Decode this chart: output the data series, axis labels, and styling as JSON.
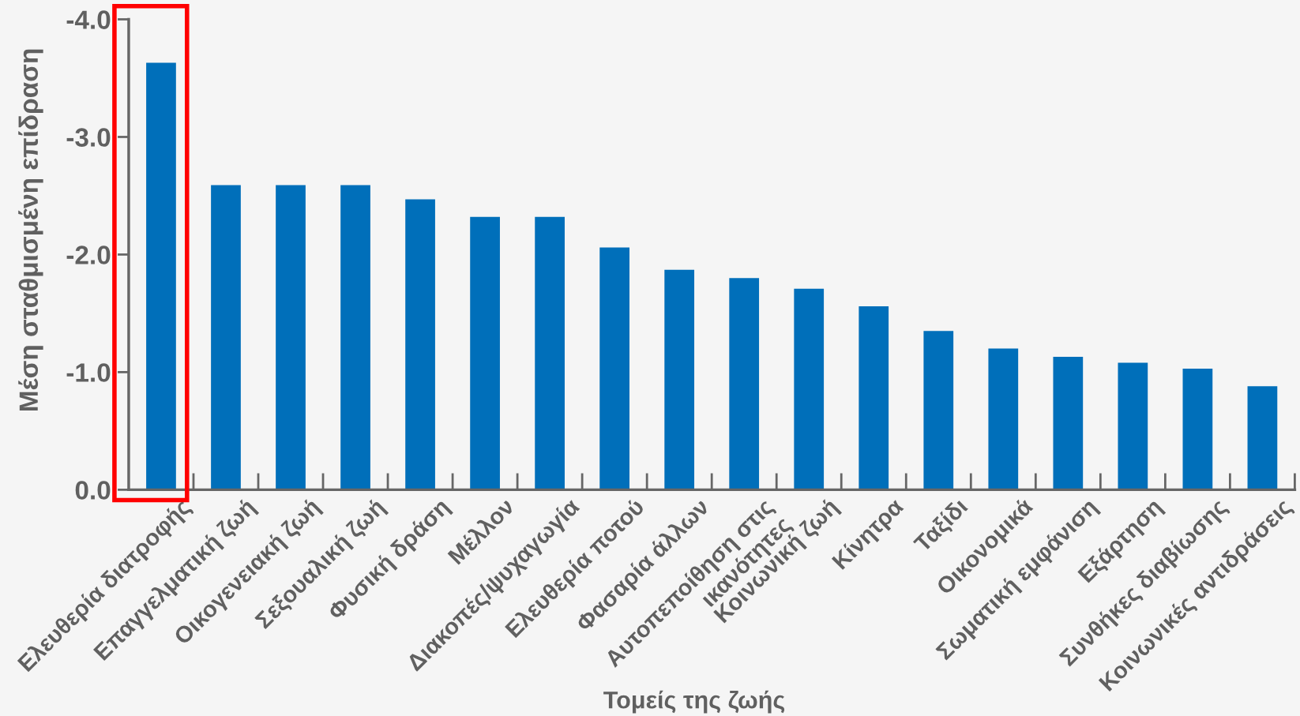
{
  "chart_data": {
    "type": "bar",
    "xlabel": "Τομείς της ζωής",
    "ylabel": "Μέση σταθμισμένη επίδραση",
    "categories": [
      "Ελευθερία διατροφής",
      "Επαγγελματική ζωή",
      "Οικογενειακή ζωή",
      "Σεξουαλική ζωή",
      "Φυσική δράση",
      "Μέλλον",
      "Διακοπές/ψυχαγωγία",
      "Ελευθερία ποτού",
      "Φασαρία άλλων",
      "Αυτοπεποίθηση στις\nικανότητες",
      "Κοινωνική ζωή",
      "Κίνητρα",
      "Ταξίδι",
      "Οικονομικά",
      "Σωματική εμφάνιση",
      "Εξάρτηση",
      "Συνθήκες διαβίωσης",
      "Κοινωνικές αντιδράσεις"
    ],
    "values": [
      -3.63,
      -2.59,
      -2.59,
      -2.59,
      -2.47,
      -2.32,
      -2.32,
      -2.06,
      -1.87,
      -1.8,
      -1.71,
      -1.56,
      -1.35,
      -1.2,
      -1.13,
      -1.08,
      -1.03,
      -0.88
    ],
    "color": "#006fba",
    "ylim": [
      0,
      -4.0
    ],
    "yticks": [
      {
        "value": 0,
        "label": "0.0"
      },
      {
        "value": -1,
        "label": "-1.0"
      },
      {
        "value": -2,
        "label": "-2.0"
      },
      {
        "value": -3,
        "label": "-3.0"
      },
      {
        "value": -4,
        "label": "-4.0"
      }
    ]
  }
}
